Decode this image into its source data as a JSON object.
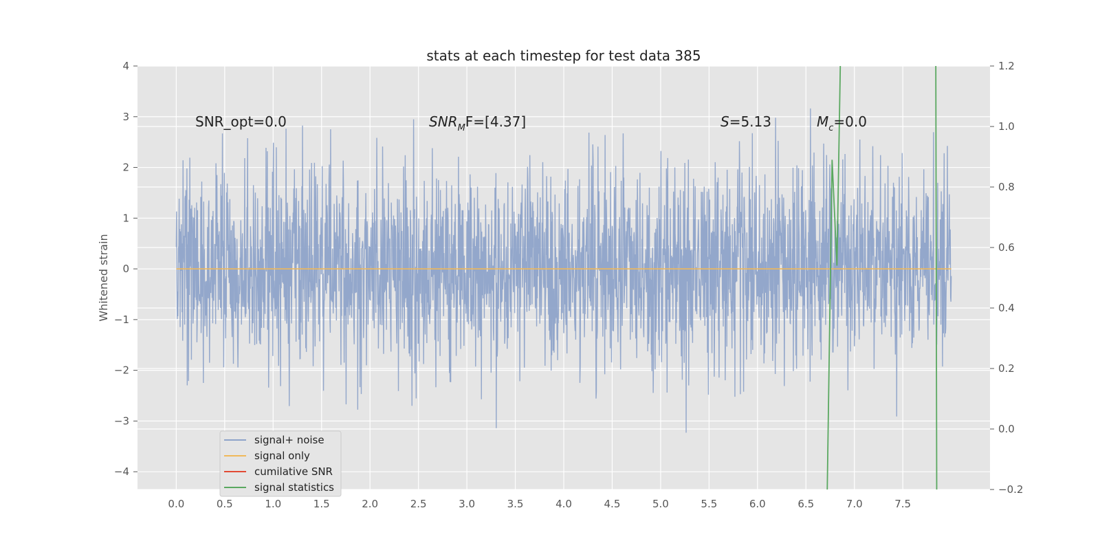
{
  "chart_data": {
    "type": "line",
    "title": "stats at each timestep for test data 385",
    "ylabel": "Whitened strain",
    "xlabel": "",
    "xlim": [
      -0.4,
      8.4
    ],
    "ylim": [
      -4.35,
      4.0
    ],
    "y2lim": [
      -0.2,
      1.2
    ],
    "xticks": [
      "0.0",
      "0.5",
      "1.0",
      "1.5",
      "2.0",
      "2.5",
      "3.0",
      "3.5",
      "4.0",
      "4.5",
      "5.0",
      "5.5",
      "6.0",
      "6.5",
      "7.0",
      "7.5"
    ],
    "yticks": [
      "4",
      "3",
      "2",
      "1",
      "0",
      "−1",
      "−2",
      "−3",
      "−4"
    ],
    "y2ticks": [
      "1.2",
      "1.0",
      "0.8",
      "0.6",
      "0.4",
      "0.2",
      "0.0",
      "−0.2"
    ],
    "grid": true,
    "legend_position": "lower-left",
    "annotations": {
      "snr_opt": "SNR_opt=0.0",
      "snr_mf_main": "SNR",
      "snr_mf_sub": "M",
      "snr_mf_rest": "F=[4.37]",
      "s_main": "S",
      "s_rest": "=5.13",
      "mc_main": "M",
      "mc_sub": "c",
      "mc_rest": "=0.0"
    },
    "series": [
      {
        "name": "signal+ noise",
        "color": "#8ea3c9",
        "x_range": [
          0.0,
          8.0
        ],
        "noise_std": 1.0,
        "y_range_observed": [
          -3.98,
          3.65
        ]
      },
      {
        "name": "signal only",
        "color": "#f0b85a",
        "x": [
          0.0,
          8.0
        ],
        "y": [
          0.0,
          0.0
        ]
      },
      {
        "name": "cumilative SNR",
        "color": "#e24a33",
        "x": [],
        "y": []
      },
      {
        "name": "signal statistics",
        "color": "#5aa860",
        "axis": "right",
        "x": [
          6.72,
          6.77,
          6.82,
          6.86,
          7.84,
          7.85
        ],
        "y": [
          -0.2,
          0.89,
          0.54,
          1.3,
          1.3,
          -0.2
        ]
      }
    ],
    "legend_labels": [
      "signal+ noise",
      "signal only",
      "cumilative SNR",
      "signal statistics"
    ],
    "colors": {
      "plot_bg": "#e5e5e5",
      "grid": "#ffffff",
      "noise": "#8ea3c9",
      "signal": "#f0b85a",
      "snr": "#e24a33",
      "stats": "#5aa860"
    }
  }
}
